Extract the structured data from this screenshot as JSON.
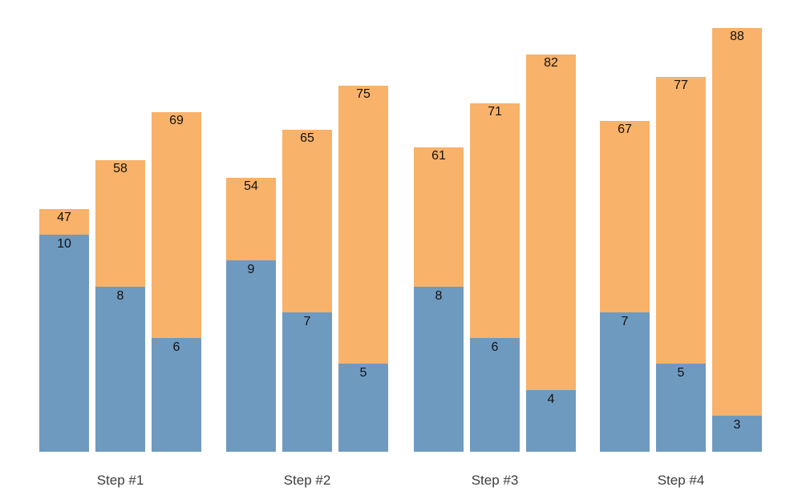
{
  "chart_data": {
    "type": "bar",
    "variant": "grouped-stacked",
    "title": "",
    "xlabel": "",
    "ylabel": "",
    "grid": false,
    "legend": false,
    "background": "#ffffff",
    "categories": [
      "Step #1",
      "Step #2",
      "Step #3",
      "Step #4"
    ],
    "colors": {
      "bottom_segment": "#6e9ac0",
      "top_segment": "#f8b269",
      "value_label": "#111111",
      "category_label": "#3d3d3d"
    },
    "groups": [
      {
        "label": "Step #1",
        "bars": [
          {
            "top_label": 47,
            "bottom_label": 10
          },
          {
            "top_label": 58,
            "bottom_label": 8
          },
          {
            "top_label": 69,
            "bottom_label": 6
          }
        ]
      },
      {
        "label": "Step #2",
        "bars": [
          {
            "top_label": 54,
            "bottom_label": 9
          },
          {
            "top_label": 65,
            "bottom_label": 7
          },
          {
            "top_label": 75,
            "bottom_label": 5
          }
        ]
      },
      {
        "label": "Step #3",
        "bars": [
          {
            "top_label": 61,
            "bottom_label": 8
          },
          {
            "top_label": 71,
            "bottom_label": 6
          },
          {
            "top_label": 82,
            "bottom_label": 4
          }
        ]
      },
      {
        "label": "Step #4",
        "bars": [
          {
            "top_label": 67,
            "bottom_label": 7
          },
          {
            "top_label": 77,
            "bottom_label": 5
          },
          {
            "top_label": 88,
            "bottom_label": 3
          }
        ]
      }
    ],
    "series": [
      {
        "name": "bottom-blue",
        "values": [
          [
            10,
            8,
            6
          ],
          [
            9,
            7,
            5
          ],
          [
            8,
            6,
            4
          ],
          [
            7,
            5,
            3
          ]
        ]
      },
      {
        "name": "top-orange-total",
        "values": [
          [
            47,
            58,
            69
          ],
          [
            54,
            65,
            75
          ],
          [
            61,
            71,
            82
          ],
          [
            67,
            77,
            88
          ]
        ]
      }
    ]
  }
}
